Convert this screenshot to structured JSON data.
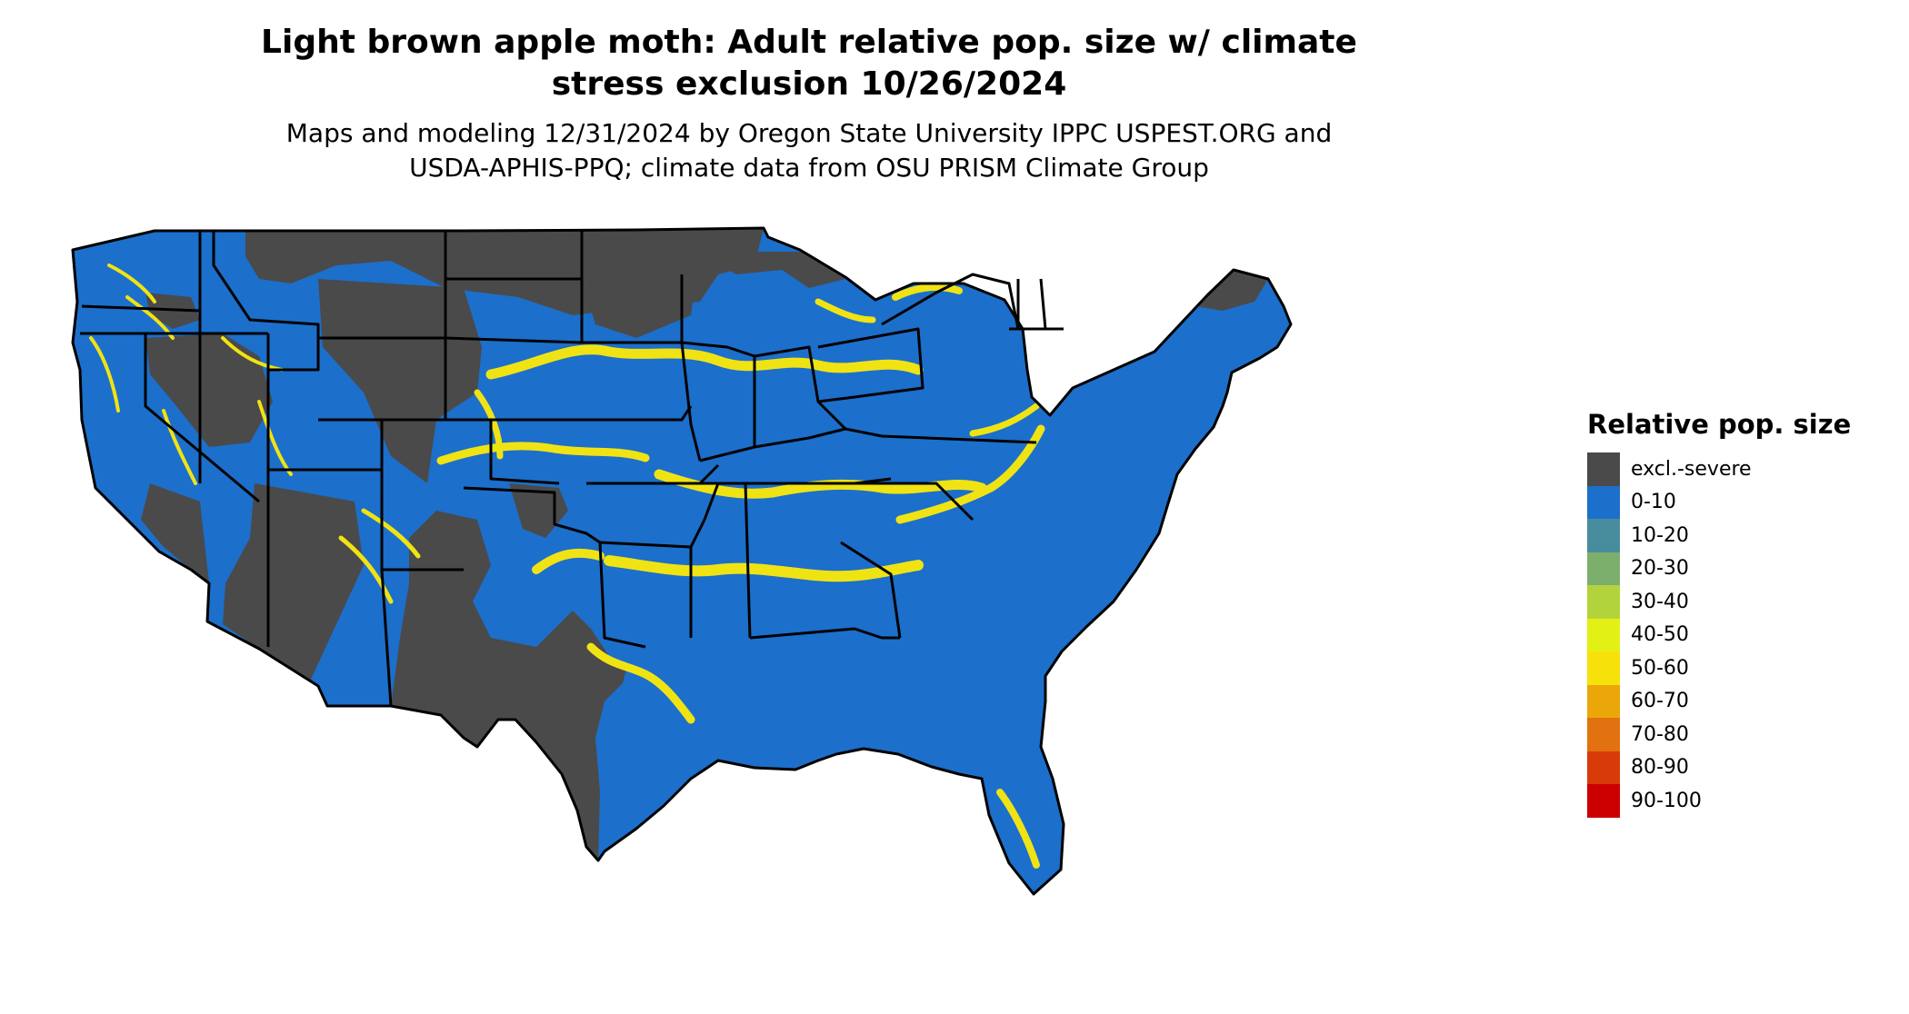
{
  "title": "Light brown apple moth: Adult relative pop. size w/ climate stress exclusion 10/26/2024",
  "title_lines": [
    "Light brown apple moth: Adult relative pop. size w/ climate",
    "stress exclusion 10/26/2024"
  ],
  "subtitle_lines": [
    "Maps and modeling 12/31/2024 by Oregon State University IPPC USPEST.ORG and",
    "USDA-APHIS-PPQ; climate data from OSU PRISM Climate Group"
  ],
  "legend": {
    "title": "Relative pop. size",
    "items": [
      {
        "label": "excl.-severe",
        "color": "#4a4a4a"
      },
      {
        "label": "0-10",
        "color": "#1c6fcb"
      },
      {
        "label": "10-20",
        "color": "#478d9d"
      },
      {
        "label": "20-30",
        "color": "#7daf6c"
      },
      {
        "label": "30-40",
        "color": "#b3d33c"
      },
      {
        "label": "40-50",
        "color": "#e3f016"
      },
      {
        "label": "50-60",
        "color": "#f7e10a"
      },
      {
        "label": "60-70",
        "color": "#eba70a"
      },
      {
        "label": "70-80",
        "color": "#e27110"
      },
      {
        "label": "80-90",
        "color": "#d83b09"
      },
      {
        "label": "90-100",
        "color": "#cc0000"
      }
    ]
  },
  "map": {
    "region": "Contiguous United States",
    "colors": {
      "excluded": "#4a4a4a",
      "low": "#1c6fcb",
      "band": "#f0e314",
      "border": "#000000",
      "background": "#ffffff"
    }
  }
}
